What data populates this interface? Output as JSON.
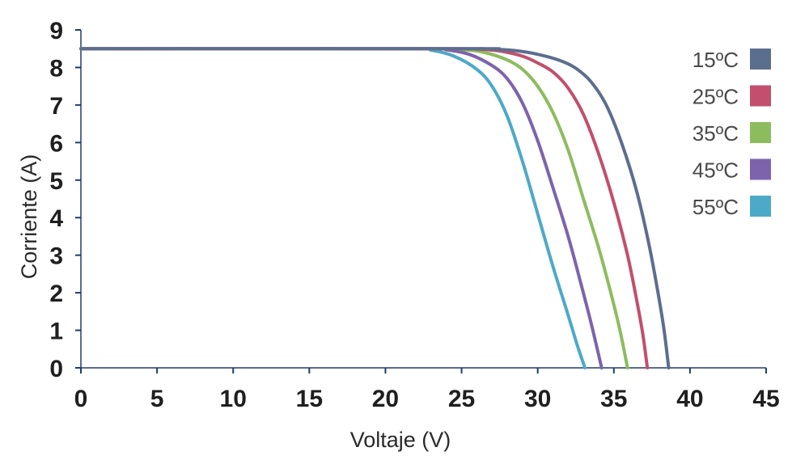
{
  "chart_data": {
    "type": "line",
    "xlabel": "Voltaje (V)",
    "ylabel": "Corriente (A)",
    "xlim": [
      0,
      45
    ],
    "ylim": [
      0,
      9
    ],
    "xticks": [
      0,
      5,
      10,
      15,
      20,
      25,
      30,
      35,
      40,
      45
    ],
    "yticks": [
      0,
      1,
      2,
      3,
      4,
      5,
      6,
      7,
      8,
      9
    ],
    "grid": false,
    "legend_position": "top-right",
    "axis_color": "#1f3c6e",
    "series": [
      {
        "name": "15ºC",
        "color": "#5c6e8e",
        "points": [
          [
            0,
            8.5
          ],
          [
            25,
            8.5
          ],
          [
            27,
            8.49
          ],
          [
            28.5,
            8.45
          ],
          [
            30,
            8.35
          ],
          [
            31.5,
            8.18
          ],
          [
            32.5,
            7.98
          ],
          [
            33.5,
            7.62
          ],
          [
            34.5,
            7.0
          ],
          [
            35.5,
            6.0
          ],
          [
            36.5,
            4.7
          ],
          [
            37.3,
            3.3
          ],
          [
            37.9,
            2.0
          ],
          [
            38.3,
            1.0
          ],
          [
            38.6,
            0
          ]
        ]
      },
      {
        "name": "25ºC",
        "color": "#c24f6b",
        "points": [
          [
            0,
            8.5
          ],
          [
            24,
            8.5
          ],
          [
            26,
            8.49
          ],
          [
            27.5,
            8.44
          ],
          [
            29,
            8.3
          ],
          [
            30,
            8.12
          ],
          [
            31,
            7.88
          ],
          [
            32,
            7.45
          ],
          [
            33,
            6.75
          ],
          [
            34,
            5.7
          ],
          [
            35,
            4.4
          ],
          [
            35.9,
            3.0
          ],
          [
            36.5,
            1.8
          ],
          [
            36.9,
            0.9
          ],
          [
            37.2,
            0
          ]
        ]
      },
      {
        "name": "35ºC",
        "color": "#8cbc5e",
        "points": [
          [
            0,
            8.5
          ],
          [
            23,
            8.5
          ],
          [
            25,
            8.48
          ],
          [
            26.5,
            8.4
          ],
          [
            28,
            8.2
          ],
          [
            29,
            7.95
          ],
          [
            30,
            7.5
          ],
          [
            31,
            6.8
          ],
          [
            32,
            5.8
          ],
          [
            33,
            4.5
          ],
          [
            34,
            3.2
          ],
          [
            34.8,
            2.0
          ],
          [
            35.4,
            1.0
          ],
          [
            35.9,
            0
          ]
        ]
      },
      {
        "name": "45ºC",
        "color": "#7d63ac",
        "points": [
          [
            0,
            8.5
          ],
          [
            22.5,
            8.5
          ],
          [
            24,
            8.47
          ],
          [
            25.5,
            8.35
          ],
          [
            27,
            8.05
          ],
          [
            28,
            7.7
          ],
          [
            29,
            7.05
          ],
          [
            30,
            6.05
          ],
          [
            31,
            4.8
          ],
          [
            32,
            3.5
          ],
          [
            32.8,
            2.3
          ],
          [
            33.5,
            1.2
          ],
          [
            34.2,
            0
          ]
        ]
      },
      {
        "name": "55ºC",
        "color": "#4da9c8",
        "points": [
          [
            0,
            8.5
          ],
          [
            21.5,
            8.5
          ],
          [
            23,
            8.46
          ],
          [
            24.5,
            8.3
          ],
          [
            26,
            7.95
          ],
          [
            27,
            7.5
          ],
          [
            28,
            6.7
          ],
          [
            29,
            5.5
          ],
          [
            30,
            4.1
          ],
          [
            31,
            2.7
          ],
          [
            32,
            1.4
          ],
          [
            32.6,
            0.6
          ],
          [
            33.1,
            0
          ]
        ]
      }
    ]
  }
}
